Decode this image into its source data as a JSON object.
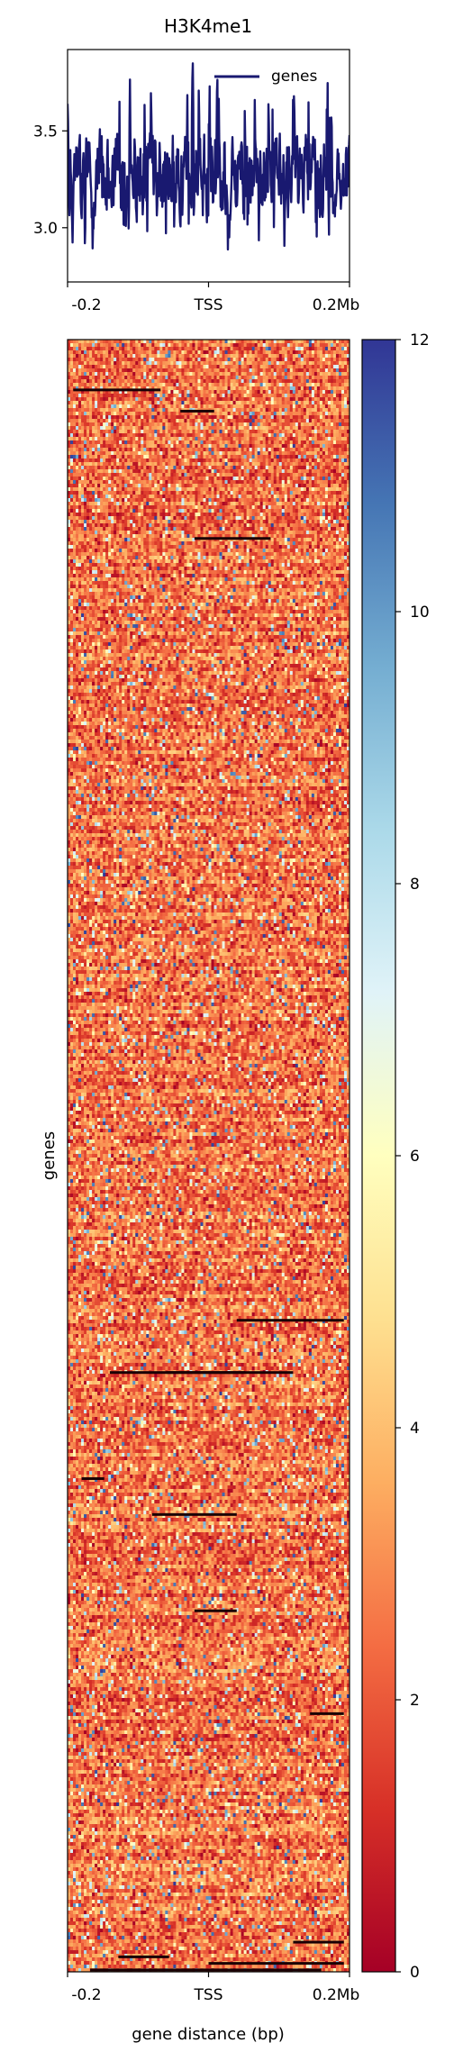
{
  "chart_data": [
    {
      "type": "line",
      "title": "H3K4me1",
      "xlabel": "",
      "ylabel": "",
      "x_ticks": [
        "-0.2",
        "TSS",
        "0.2Mb"
      ],
      "y_ticks": [
        "3.0",
        "3.5"
      ],
      "ylim": [
        2.72,
        3.92
      ],
      "series": [
        {
          "name": "genes",
          "color": "#191970",
          "mean": 3.27,
          "spread": 0.18,
          "range": [
            2.75,
            3.92
          ]
        }
      ],
      "legend": "top-right"
    },
    {
      "type": "heatmap",
      "xlabel": "gene distance (bp)",
      "ylabel": "genes",
      "x_ticks": [
        "-0.2",
        "TSS",
        "0.2Mb"
      ],
      "colormap": "RdYlBu",
      "colorbar_ticks": [
        "0",
        "2",
        "4",
        "6",
        "8",
        "10",
        "12"
      ],
      "clim": [
        0,
        12
      ],
      "typical_value_range": [
        1,
        4
      ],
      "colorscale": [
        "#a50026",
        "#d73027",
        "#f46d43",
        "#fdae61",
        "#fee090",
        "#ffffbf",
        "#e0f3f8",
        "#abd9e9",
        "#74add1",
        "#4575b4",
        "#313695"
      ]
    }
  ]
}
